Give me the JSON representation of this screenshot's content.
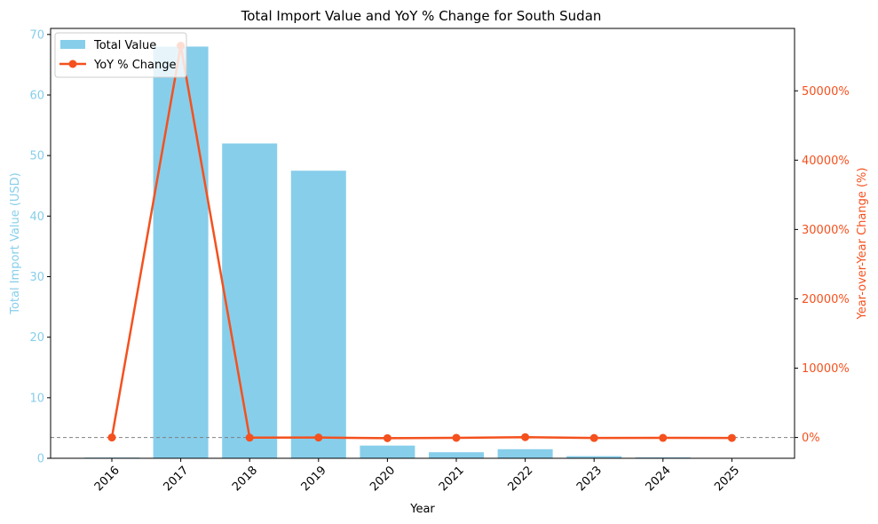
{
  "chart_data": {
    "type": "bar+line",
    "title": "Total Import Value and YoY % Change for South Sudan",
    "xlabel": "Year",
    "ylabel_left": "Total Import Value (USD)",
    "ylabel_right": "Year-over-Year Change (%)",
    "categories": [
      "2016",
      "2017",
      "2018",
      "2019",
      "2020",
      "2021",
      "2022",
      "2023",
      "2024",
      "2025"
    ],
    "ylim_left": [
      0,
      71
    ],
    "yticks_left": [
      "0",
      "10",
      "20",
      "30",
      "40",
      "50",
      "60",
      "70"
    ],
    "ylim_right": [
      -3000,
      59000
    ],
    "yticks_right": [
      {
        "value": 0,
        "label": "0%"
      },
      {
        "value": 10000,
        "label": "10000%"
      },
      {
        "value": 20000,
        "label": "20000%"
      },
      {
        "value": 30000,
        "label": "30000%"
      },
      {
        "value": 40000,
        "label": "40000%"
      },
      {
        "value": 50000,
        "label": "50000%"
      }
    ],
    "series": [
      {
        "name": "Total Value",
        "kind": "bar",
        "axis": "left",
        "color": "#87ceeb",
        "values": [
          0.12,
          68.0,
          52.0,
          47.5,
          2.1,
          1.0,
          1.5,
          0.35,
          0.15,
          0.05
        ]
      },
      {
        "name": "YoY % Change",
        "kind": "line",
        "axis": "right",
        "color": "#f4511e",
        "values": [
          0,
          56500,
          -24,
          -9,
          -96,
          -52,
          50,
          -77,
          -57,
          -67
        ]
      }
    ],
    "reference_line": {
      "axis": "right",
      "value": 0,
      "style": "dashed",
      "color": "#808080"
    },
    "legend": {
      "position": "top-left"
    },
    "colors": {
      "left_axis": "#87ceeb",
      "right_axis": "#f4511e"
    }
  }
}
